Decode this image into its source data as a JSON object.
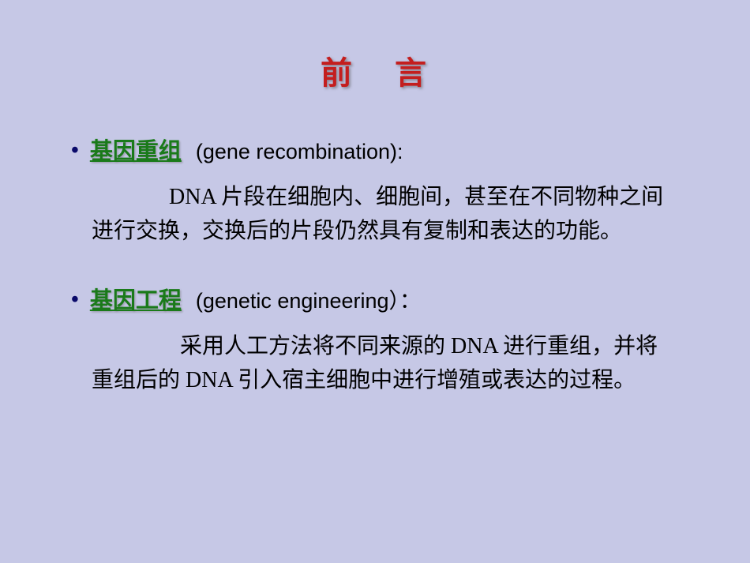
{
  "colors": {
    "background": "#c6c8e6",
    "title_color": "#c41e1e",
    "term_color": "#1a7a1a",
    "bullet_color": "#0a0a6a",
    "body_text_color": "#000000"
  },
  "typography": {
    "title_fontsize": 40,
    "term_fontsize": 29,
    "english_fontsize": 27,
    "body_fontsize": 28,
    "title_font": "SimHei",
    "body_font": "SimSun",
    "english_font": "Arial"
  },
  "title": {
    "char1": "前",
    "char2": "言"
  },
  "items": [
    {
      "term": "基因重组",
      "english": "(gene recombination):",
      "description": "DNA 片段在细胞内、细胞间，甚至在不同物种之间进行交换，交换后的片段仍然具有复制和表达的功能。"
    },
    {
      "term": "基因工程",
      "english": "(genetic engineering）：",
      "description": "采用人工方法将不同来源的 DNA 进行重组，并将重组后的 DNA 引入宿主细胞中进行增殖或表达的过程。"
    }
  ]
}
